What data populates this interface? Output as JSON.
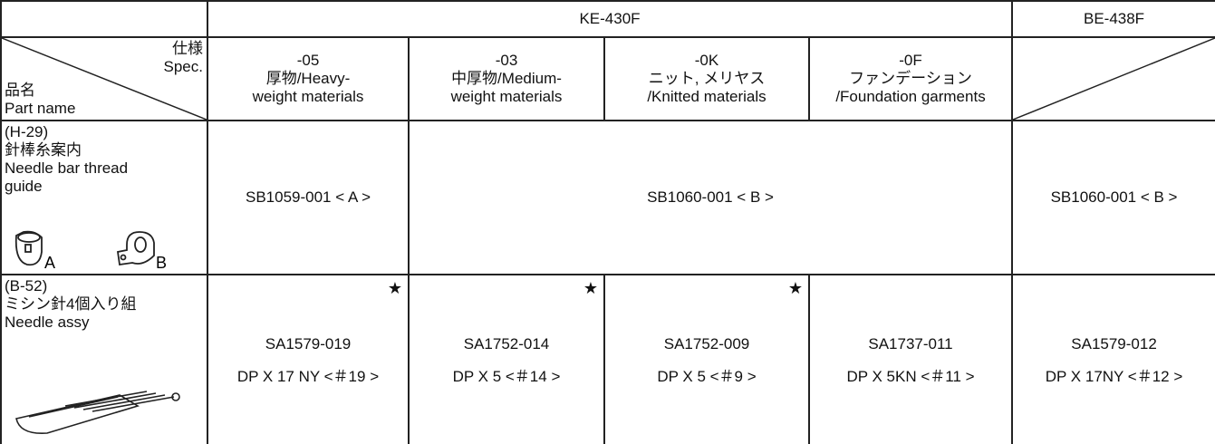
{
  "table": {
    "group_headers": [
      "KE-430F",
      "BE-438F"
    ],
    "corner": {
      "spec_ja": "仕様",
      "spec_en": "Spec.",
      "part_ja": "品名",
      "part_en": "Part name"
    },
    "columns": [
      {
        "lines": [
          "-05",
          "厚物/Heavy-",
          "weight materials"
        ]
      },
      {
        "lines": [
          "-03",
          "中厚物/Medium-",
          "weight materials"
        ]
      },
      {
        "lines": [
          "-0K",
          "ニット, メリヤス",
          "/Knitted materials"
        ]
      },
      {
        "lines": [
          "-0F",
          "ファンデーション",
          "/Foundation garments"
        ]
      }
    ],
    "rows": [
      {
        "name_lines": [
          "(H-29)",
          "針棒糸案内",
          "Needle bar thread",
          "guide"
        ],
        "icon_labels": [
          "A",
          "B"
        ],
        "cells": [
          "SB1059-001 < A >",
          "SB1060-001 < B >",
          "SB1060-001 < B >"
        ]
      },
      {
        "name_lines": [
          "(B-52)",
          "ミシン針4個入り組",
          "Needle assy"
        ],
        "cells": [
          {
            "part": "SA1579-019",
            "needle": "DP X 17 NY <＃19 >",
            "mark": "★"
          },
          {
            "part": "SA1752-014",
            "needle": "DP X 5  <＃14 >",
            "mark": "★"
          },
          {
            "part": "SA1752-009",
            "needle": "DP X 5  <＃9 >",
            "mark": "★"
          },
          {
            "part": "SA1737-011",
            "needle": "DP X 5KN  <＃11 >"
          },
          {
            "part": "SA1579-012",
            "needle": "DP X 17NY  <＃12 >"
          }
        ]
      }
    ]
  }
}
